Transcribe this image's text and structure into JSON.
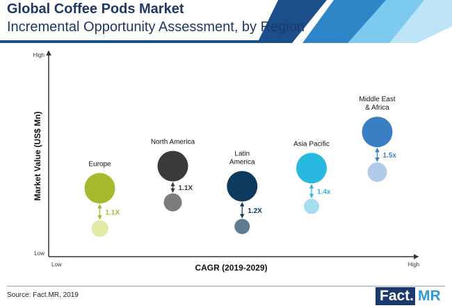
{
  "header": {
    "title": "Global Coffee Pods Market",
    "subtitle": "Incremental Opportunity Assessment, by Region"
  },
  "colors": {
    "title": "#1f3864",
    "band_dark": "#1a4f8b",
    "band_mid": "#2e86c9",
    "band_light": "#7ccaf0",
    "band_pale": "#bde5f7",
    "axis": "#333333"
  },
  "chart_data": {
    "type": "bubble",
    "xlabel": "CAGR (2019-2029)",
    "ylabel": "Market Value (US$ Mn)",
    "x_low_label": "Low",
    "x_high_label": "High",
    "y_low_label": "Low",
    "y_high_label": "High",
    "xlim": [
      0,
      100
    ],
    "ylim": [
      0,
      100
    ],
    "series": [
      {
        "name": "Europe",
        "label_lines": [
          "Europe"
        ],
        "x": 14,
        "y_current": 34,
        "y_future": 14,
        "size_current": 22,
        "size_future": 12,
        "multiplier": "1.1X",
        "color": "#a8b92e",
        "color_light": "#e2eaa5"
      },
      {
        "name": "North America",
        "label_lines": [
          "North America"
        ],
        "x": 34,
        "y_current": 45,
        "y_future": 27,
        "size_current": 22,
        "size_future": 13,
        "multiplier": "1.1X",
        "color": "#3a3a3a",
        "color_light": "#7c7c7c"
      },
      {
        "name": "Latin America",
        "label_lines": [
          "Latin",
          "America"
        ],
        "x": 53,
        "y_current": 35,
        "y_future": 15,
        "size_current": 22,
        "size_future": 11,
        "multiplier": "1.2X",
        "color": "#0e3a5e",
        "color_light": "#607b90"
      },
      {
        "name": "Asia Pacific",
        "label_lines": [
          "Asia Pacific"
        ],
        "x": 72,
        "y_current": 44,
        "y_future": 25,
        "size_current": 22,
        "size_future": 11,
        "multiplier": "1.4x",
        "color": "#29b8df",
        "color_light": "#a3def0"
      },
      {
        "name": "Middle East & Africa",
        "label_lines": [
          "Middle East",
          "& Africa"
        ],
        "x": 90,
        "y_current": 62,
        "y_future": 42,
        "size_current": 22,
        "size_future": 14,
        "multiplier": "1.5x",
        "color": "#3a7fc4",
        "color_light": "#b3cbe8"
      }
    ]
  },
  "footer": {
    "source": "Source: Fact.MR, 2019",
    "brand_part1": "Fact.",
    "brand_part2": "MR"
  }
}
